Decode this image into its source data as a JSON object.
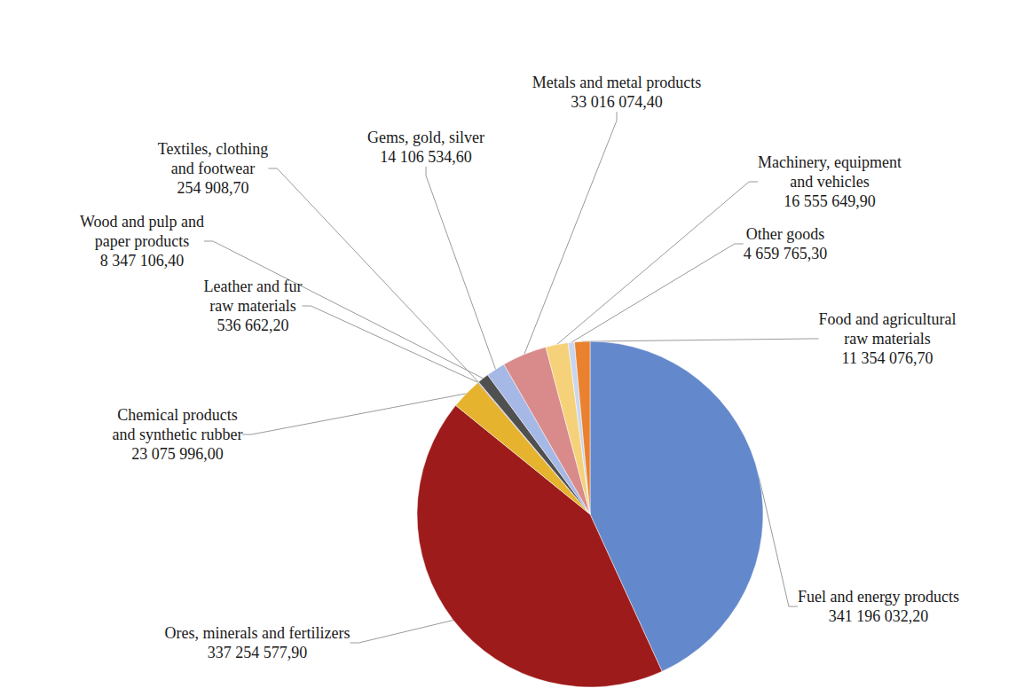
{
  "chart_data": {
    "type": "pie",
    "categories": [
      "Fuel and energy products",
      "Ores, minerals and fertilizers",
      "Chemical products and synthetic rubber",
      "Leather and fur raw materials",
      "Textiles, clothing and footwear",
      "Wood and pulp and paper products",
      "Gems, gold, silver",
      "Metals and metal products",
      "Machinery, equipment and vehicles",
      "Other goods",
      "Food and agricultural raw materials"
    ],
    "values": [
      341196032.2,
      337254577.9,
      23075996.0,
      536662.2,
      254908.7,
      8347106.4,
      14106534.6,
      33016074.4,
      16555649.9,
      4659765.3,
      11354076.7
    ],
    "value_labels": [
      "341 196 032,20",
      "337 254 577,90",
      "23 075 996,00",
      "536 662,20",
      "254 908,70",
      "8 347 106,40",
      "14 106 534,60",
      "33 016 074,40",
      "16 555 649,90",
      "4 659 765,30",
      "11 354 076,70"
    ],
    "colors": [
      "#6488cc",
      "#9e1b1b",
      "#e6b32e",
      "#7a3a3a",
      "#8a8a8a",
      "#505050",
      "#a5b8e6",
      "#d98a8a",
      "#f5d27a",
      "#c9d6ef",
      "#e9812f"
    ],
    "data_labels": true
  }
}
